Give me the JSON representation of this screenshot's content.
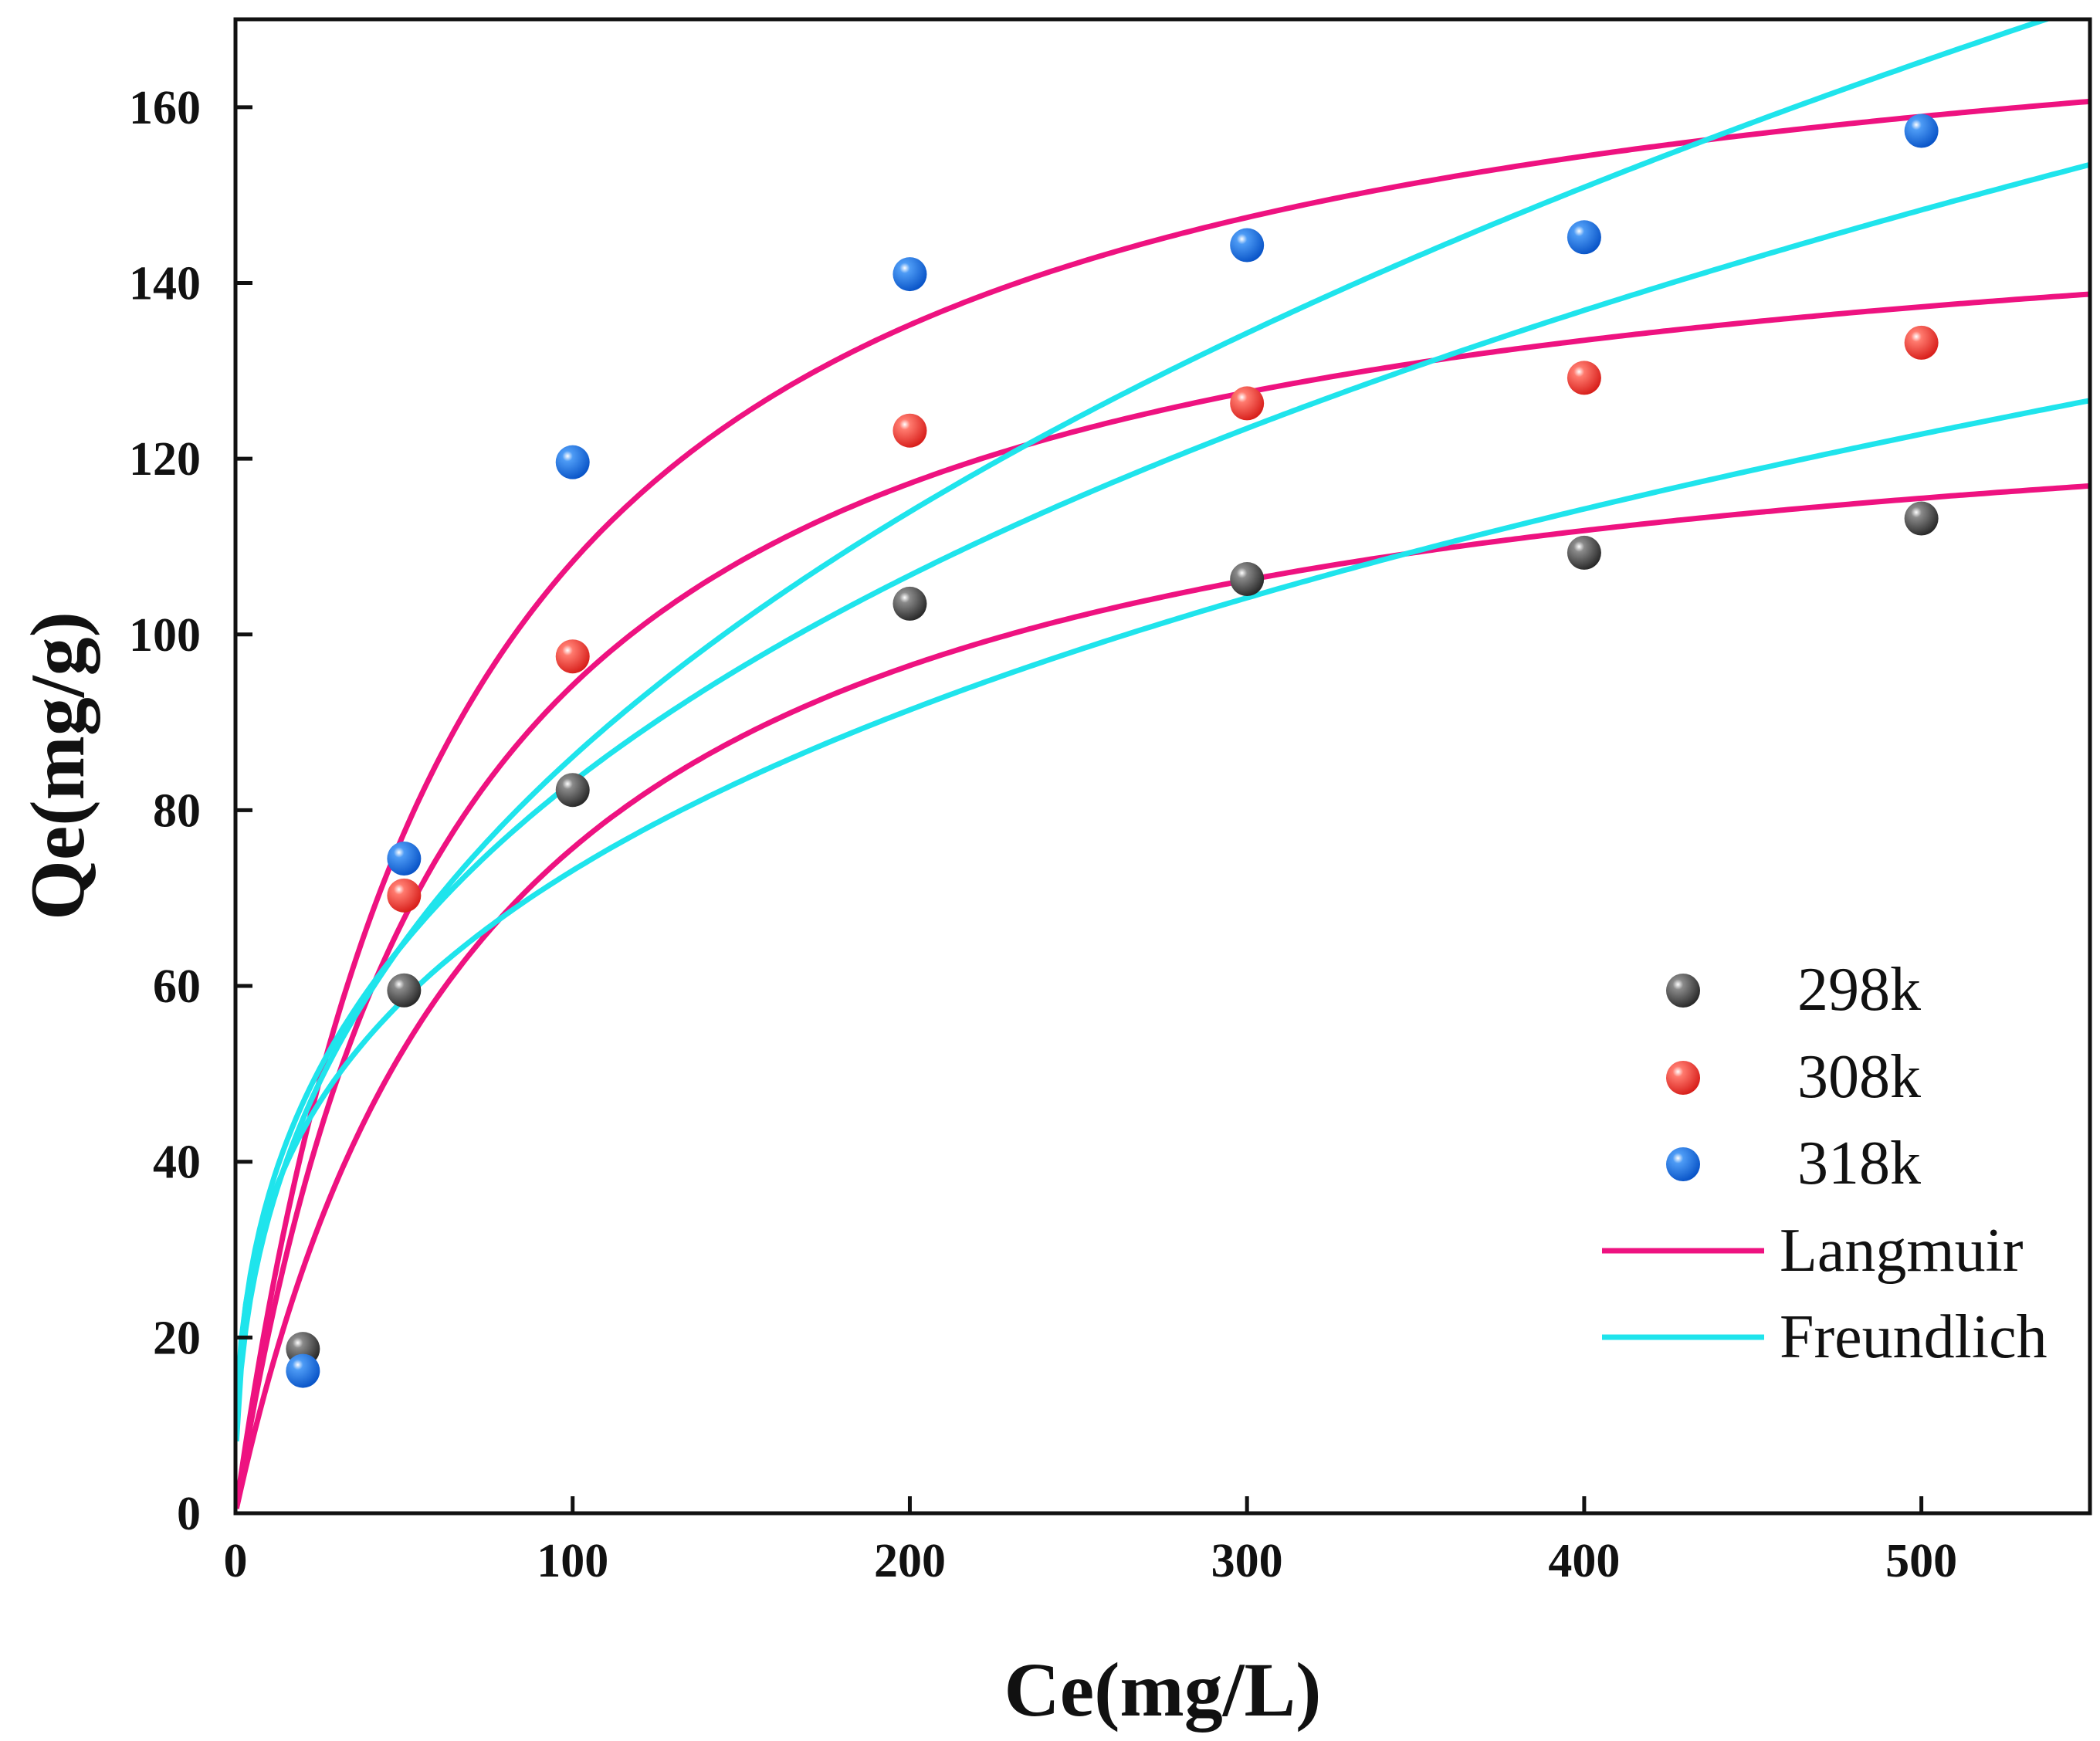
{
  "chart_data": {
    "type": "scatter",
    "xlabel": "Ce(mg/L)",
    "ylabel": "Qe(mg/g)",
    "xlim": [
      0,
      550
    ],
    "ylim": [
      0,
      170
    ],
    "xticks": [
      0,
      100,
      200,
      300,
      400,
      500
    ],
    "yticks": [
      0,
      20,
      40,
      60,
      80,
      100,
      120,
      140,
      160
    ],
    "legend_position": "bottom-right",
    "series": [
      {
        "name": "298k",
        "color": "#4a4a4a",
        "x": [
          20,
          50,
          100,
          200,
          300,
          400,
          500
        ],
        "y": [
          18.7,
          59.5,
          82.3,
          103.5,
          106.3,
          109.3,
          113.2
        ]
      },
      {
        "name": "308k",
        "color": "#ef3b3b",
        "x": [
          50,
          100,
          200,
          300,
          400,
          500
        ],
        "y": [
          70.3,
          97.5,
          123.2,
          126.3,
          129.2,
          133.2
        ]
      },
      {
        "name": "318k",
        "color": "#1f6fe0",
        "x": [
          20,
          50,
          100,
          200,
          300,
          400,
          500
        ],
        "y": [
          16.2,
          74.5,
          119.6,
          141.0,
          144.3,
          145.2,
          157.3
        ]
      }
    ],
    "fits": [
      {
        "model": "Langmuir",
        "color": "#ee1280",
        "curves": [
          {
            "series": "298k",
            "qm": 133,
            "kl": 0.0132
          },
          {
            "series": "308k",
            "qm": 155,
            "kl": 0.0155
          },
          {
            "series": "318k",
            "qm": 180,
            "kl": 0.0151
          }
        ]
      },
      {
        "model": "Freundlich",
        "color": "#1fe4ec",
        "curves": [
          {
            "series": "298k",
            "kf": 16.6,
            "inv_n": 0.322
          },
          {
            "series": "308k",
            "kf": 15.93,
            "inv_n": 0.359
          },
          {
            "series": "318k",
            "kf": 13.33,
            "inv_n": 0.405
          }
        ]
      }
    ]
  }
}
